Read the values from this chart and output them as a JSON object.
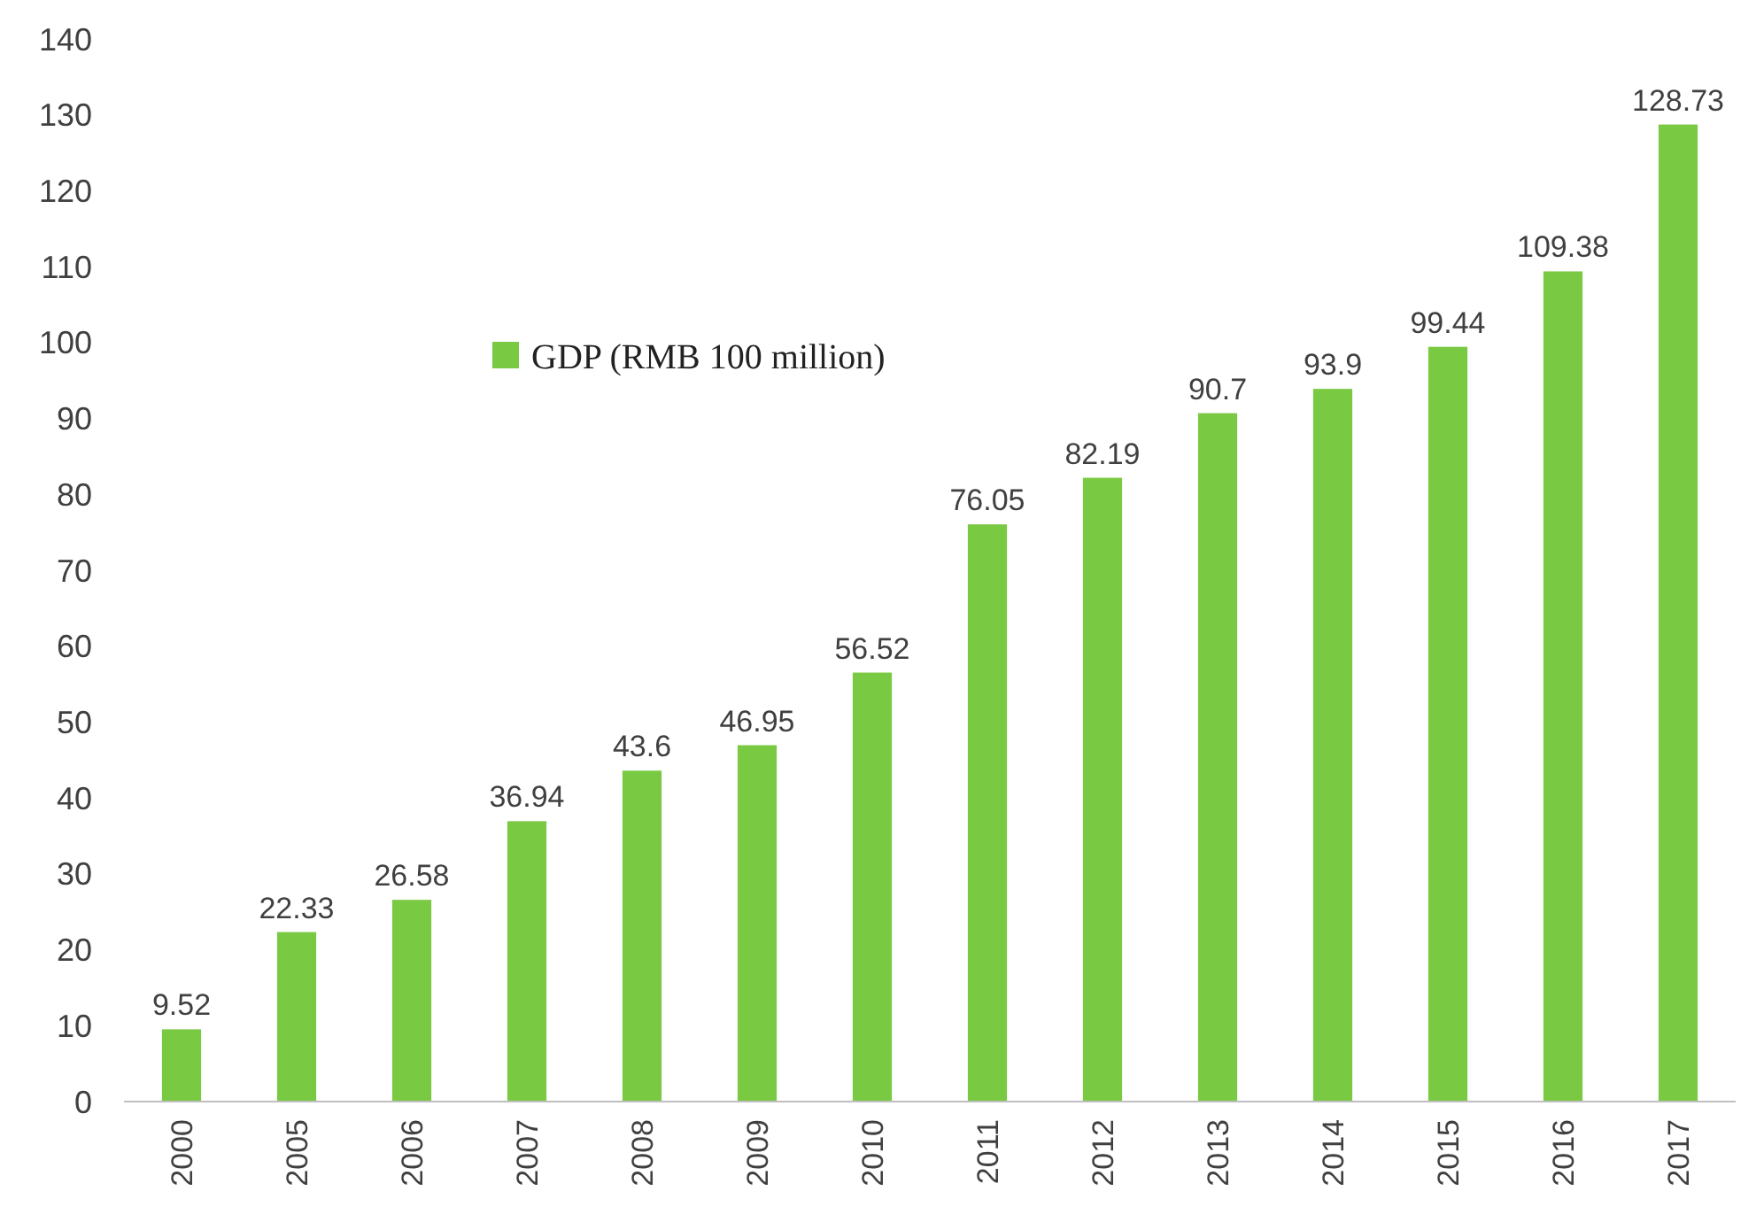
{
  "chart_data": {
    "type": "bar",
    "categories": [
      "2000",
      "2005",
      "2006",
      "2007",
      "2008",
      "2009",
      "2010",
      "2011",
      "2012",
      "2013",
      "2014",
      "2015",
      "2016",
      "2017"
    ],
    "series": [
      {
        "name": "GDP (RMB 100 million)",
        "color": "#7ac943",
        "values": [
          9.52,
          22.33,
          26.58,
          36.94,
          43.6,
          46.95,
          56.52,
          76.05,
          82.19,
          90.7,
          93.9,
          99.44,
          109.38,
          128.73
        ]
      }
    ],
    "ylim": [
      0,
      140
    ],
    "yticks": [
      0,
      10,
      20,
      30,
      40,
      50,
      60,
      70,
      80,
      90,
      100,
      110,
      120,
      130,
      140
    ],
    "data_labels": true,
    "grid": false,
    "legend": "top left"
  }
}
